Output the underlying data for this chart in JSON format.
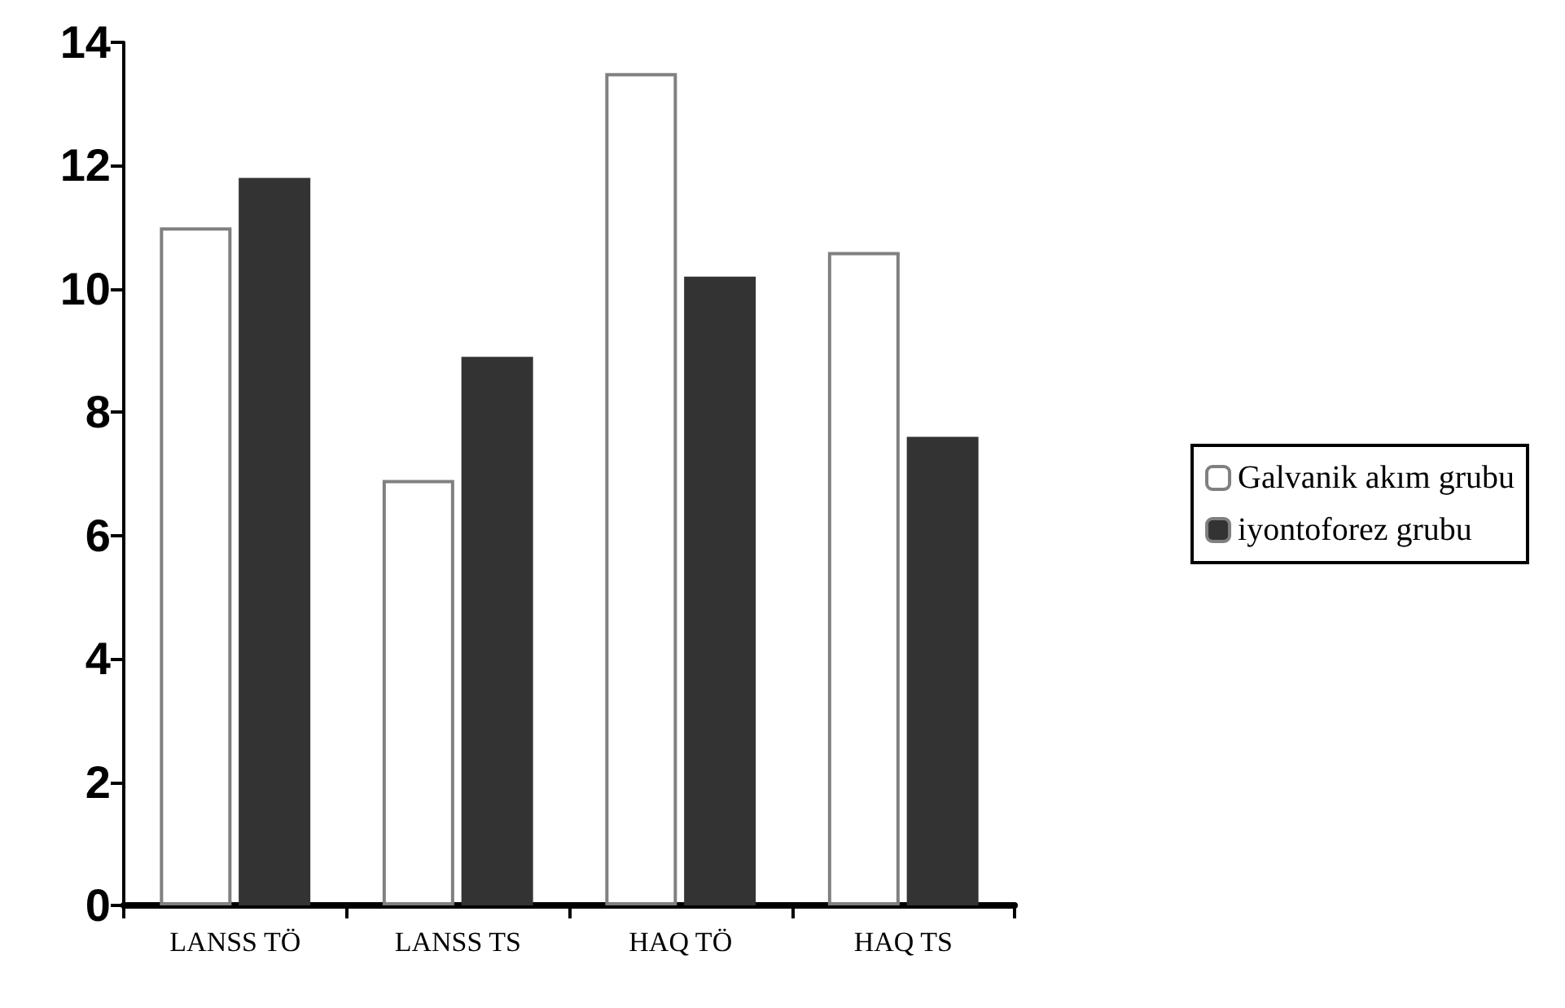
{
  "chart_data": {
    "type": "bar",
    "categories": [
      "LANSS TÖ",
      "LANSS TS",
      "HAQ TÖ",
      "HAQ TS"
    ],
    "series": [
      {
        "name": "Galvanik akım grubu",
        "color": "#ffffff",
        "values": [
          11.0,
          6.9,
          13.5,
          10.6
        ]
      },
      {
        "name": "iyontoforez grubu",
        "color": "#333333",
        "values": [
          11.8,
          8.9,
          10.2,
          7.6
        ]
      }
    ],
    "ylim": [
      0,
      14
    ],
    "yticks": [
      0,
      2,
      4,
      6,
      8,
      10,
      12,
      14
    ],
    "grid": false,
    "legend": "right"
  }
}
